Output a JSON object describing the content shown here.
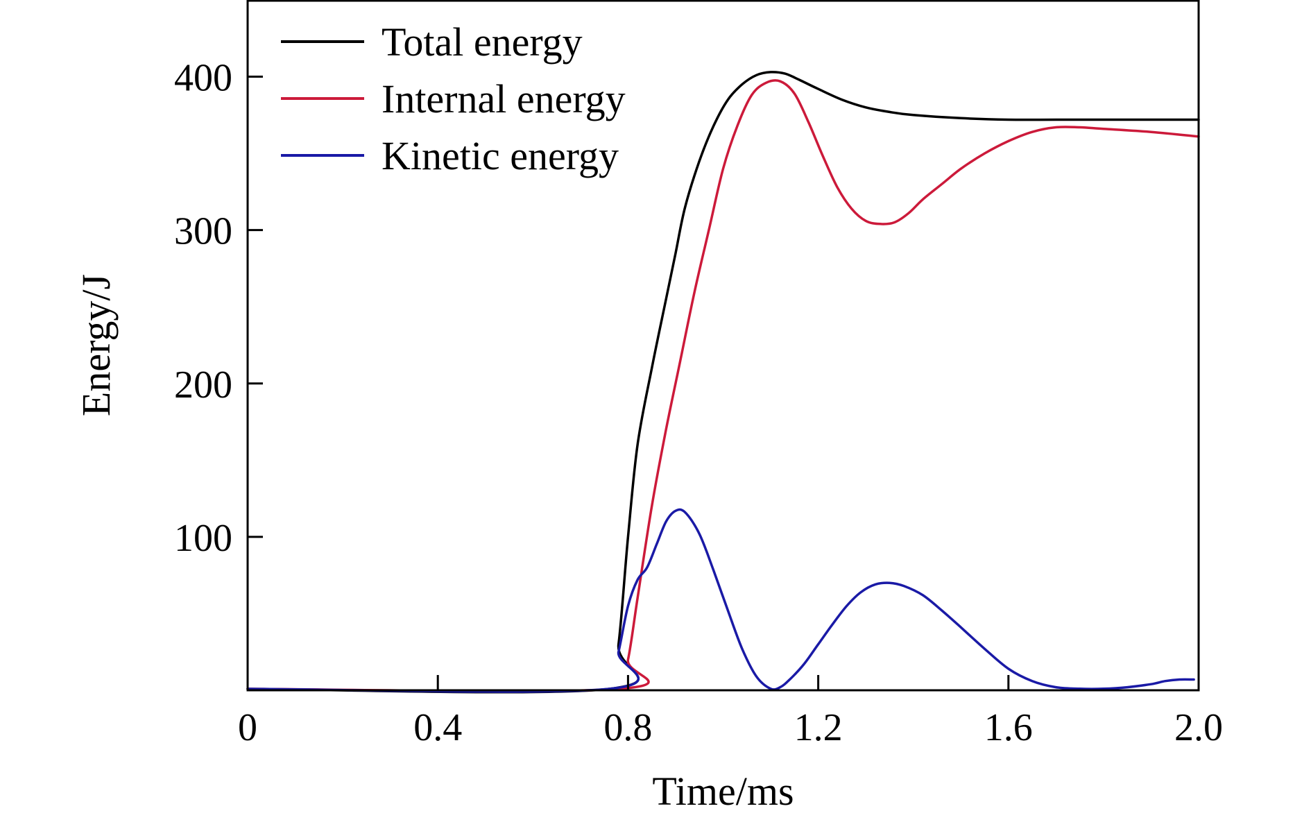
{
  "chart_data": {
    "type": "line",
    "title": "",
    "xlabel": "Time/ms",
    "ylabel": "Energy/J",
    "xlim": [
      0,
      2.0
    ],
    "ylim": [
      0,
      450
    ],
    "x_ticks": [
      {
        "value": 0,
        "label": "0"
      },
      {
        "value": 0.4,
        "label": "0.4"
      },
      {
        "value": 0.8,
        "label": "0.8"
      },
      {
        "value": 1.2,
        "label": "1.2"
      },
      {
        "value": 1.6,
        "label": "1.6"
      },
      {
        "value": 2.0,
        "label": "2.0"
      }
    ],
    "y_ticks": [
      {
        "value": 100,
        "label": "100"
      },
      {
        "value": 200,
        "label": "200"
      },
      {
        "value": 300,
        "label": "300"
      },
      {
        "value": 400,
        "label": "400"
      }
    ],
    "grid": false,
    "legend_position": "top-left",
    "series": [
      {
        "name": "Total energy",
        "color": "#000000",
        "x": [
          0,
          0.76,
          0.78,
          0.8,
          0.82,
          0.85,
          0.88,
          0.9,
          0.92,
          0.95,
          0.98,
          1.01,
          1.04,
          1.07,
          1.1,
          1.13,
          1.16,
          1.2,
          1.25,
          1.3,
          1.35,
          1.4,
          1.5,
          1.6,
          1.7,
          1.8,
          1.9,
          2.0
        ],
        "y": [
          0,
          0,
          30,
          100,
          160,
          210,
          255,
          285,
          315,
          345,
          368,
          385,
          395,
          401,
          403,
          402,
          398,
          392,
          385,
          380,
          377,
          375,
          373,
          372,
          372,
          372,
          372,
          372
        ]
      },
      {
        "name": "Internal energy",
        "color": "#cc1a3a",
        "x": [
          0,
          0.78,
          0.8,
          0.82,
          0.85,
          0.88,
          0.91,
          0.94,
          0.97,
          1.0,
          1.03,
          1.06,
          1.09,
          1.12,
          1.15,
          1.18,
          1.21,
          1.24,
          1.27,
          1.3,
          1.33,
          1.36,
          1.39,
          1.42,
          1.46,
          1.5,
          1.55,
          1.6,
          1.65,
          1.7,
          1.75,
          1.8,
          1.9,
          2.0
        ],
        "y": [
          0,
          0,
          20,
          60,
          120,
          170,
          215,
          260,
          300,
          340,
          368,
          388,
          396,
          397,
          389,
          370,
          348,
          328,
          314,
          306,
          304,
          305,
          311,
          320,
          330,
          340,
          350,
          358,
          364,
          367,
          367,
          366,
          364,
          361
        ]
      },
      {
        "name": "Kinetic energy",
        "color": "#1a1aa6",
        "x": [
          0,
          0.76,
          0.78,
          0.8,
          0.82,
          0.84,
          0.86,
          0.88,
          0.9,
          0.92,
          0.95,
          0.98,
          1.01,
          1.04,
          1.07,
          1.1,
          1.12,
          1.14,
          1.17,
          1.2,
          1.23,
          1.26,
          1.29,
          1.32,
          1.35,
          1.38,
          1.42,
          1.46,
          1.5,
          1.55,
          1.6,
          1.65,
          1.7,
          1.75,
          1.8,
          1.85,
          1.9,
          1.93,
          1.96,
          1.99
        ],
        "y": [
          0,
          0,
          25,
          55,
          72,
          80,
          95,
          110,
          117,
          116,
          102,
          78,
          52,
          27,
          9,
          1,
          2,
          7,
          17,
          30,
          43,
          55,
          64,
          69,
          70,
          68,
          62,
          52,
          41,
          27,
          14,
          6,
          2,
          1,
          1,
          2,
          4,
          6,
          7,
          7
        ]
      }
    ]
  }
}
